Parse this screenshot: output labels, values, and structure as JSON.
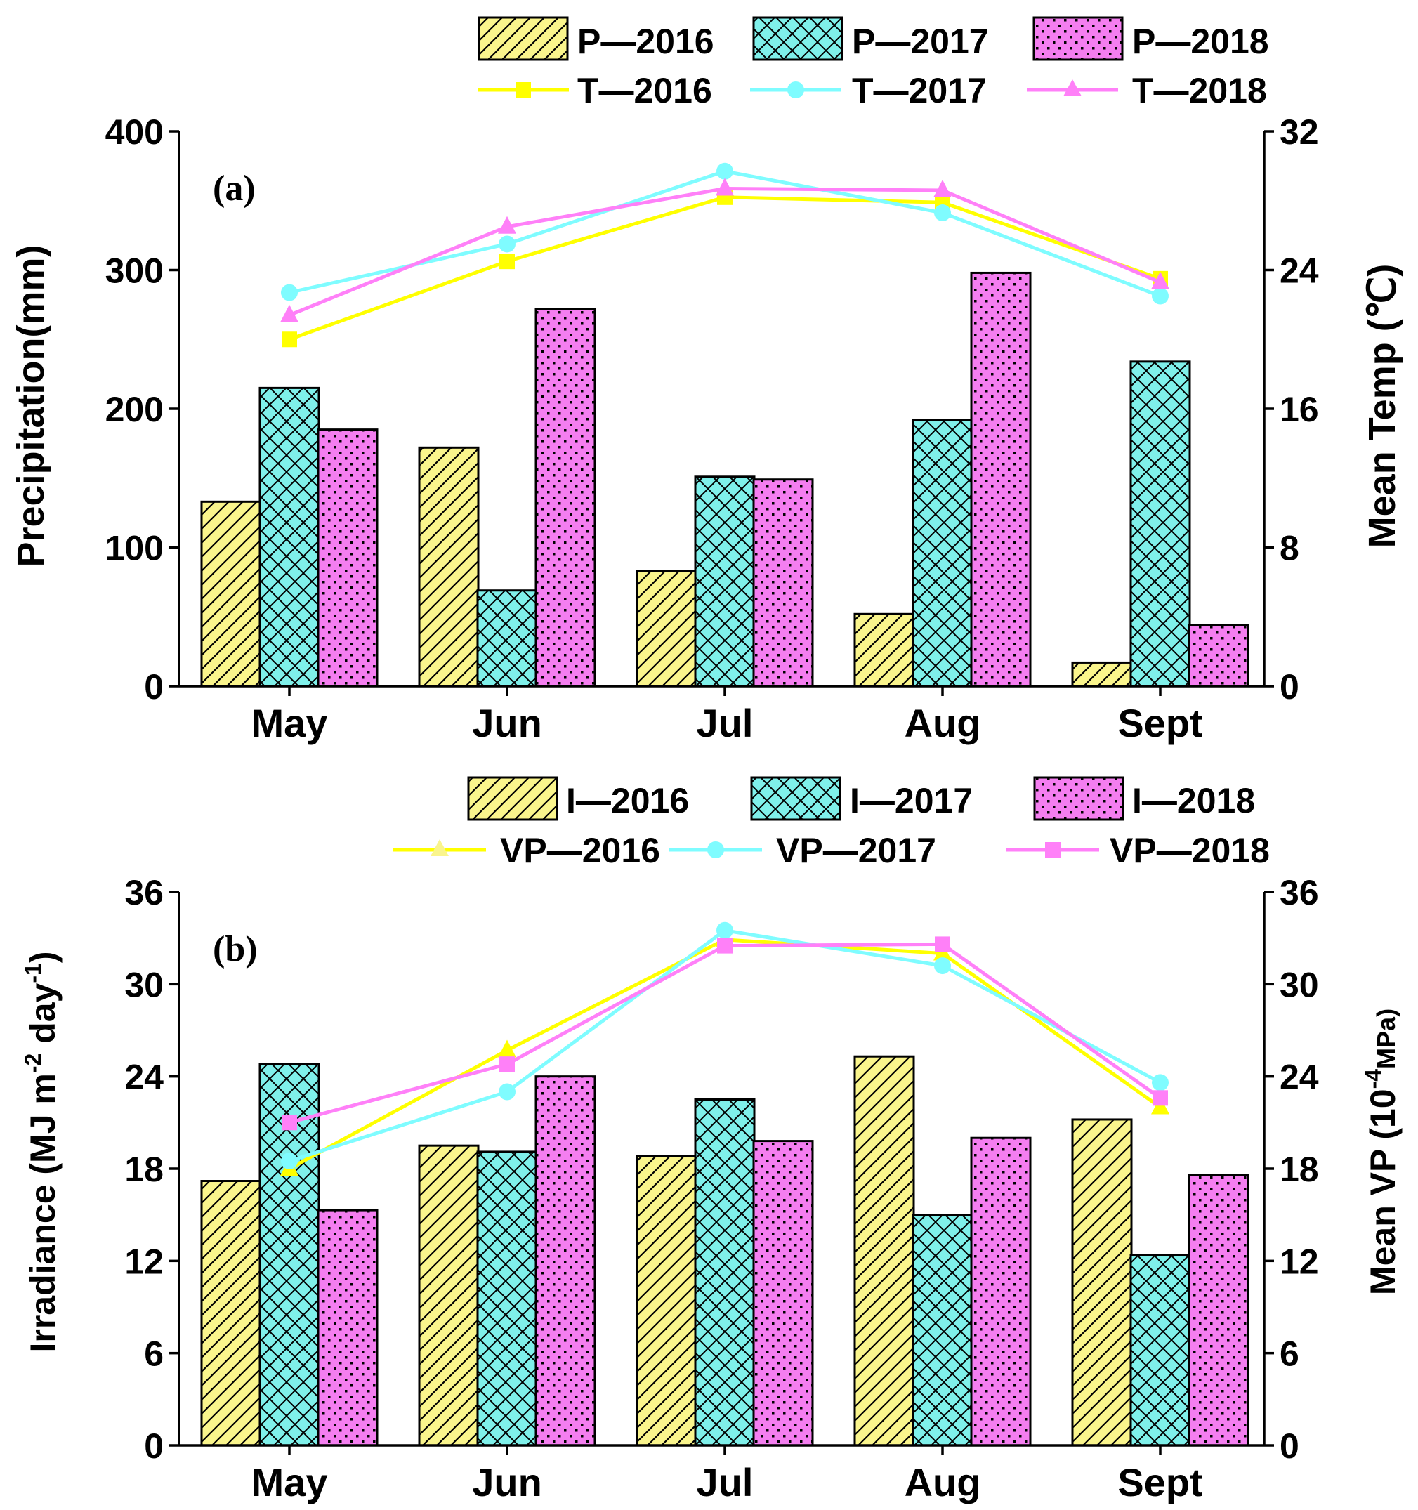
{
  "colors": {
    "y2016_fill": "#faf58c",
    "y2017_fill": "#7ff0ea",
    "y2018_fill": "#f47ef0",
    "y2016_line": "#ffff00",
    "y2017_line": "#7ffcff",
    "y2018_line": "#ff80f8",
    "axis": "#000000"
  },
  "chart_data": [
    {
      "type": "bar",
      "panel_label": "(a)",
      "categories": [
        "May",
        "Jun",
        "Jul",
        "Aug",
        "Sept"
      ],
      "ylabel": "Precipitation(mm)",
      "ylim": [
        0,
        400
      ],
      "yticks": [
        0,
        100,
        200,
        300,
        400
      ],
      "y2label": "Mean Temp (℃)",
      "y2lim": [
        0,
        32
      ],
      "y2ticks": [
        0,
        8,
        16,
        24,
        32
      ],
      "series": [
        {
          "name": "P—2016",
          "kind": "bar",
          "pattern": "hatch",
          "color_key": "y2016_fill",
          "values": [
            133,
            172,
            83,
            52,
            17
          ]
        },
        {
          "name": "P—2017",
          "kind": "bar",
          "pattern": "cross",
          "color_key": "y2017_fill",
          "values": [
            215,
            69,
            151,
            192,
            234
          ]
        },
        {
          "name": "P—2018",
          "kind": "bar",
          "pattern": "dots",
          "color_key": "y2018_fill",
          "values": [
            185,
            272,
            149,
            298,
            44
          ]
        }
      ],
      "lines": [
        {
          "name": "T—2016",
          "kind": "line",
          "marker": "square",
          "color_key": "y2016_line",
          "values": [
            20.0,
            24.5,
            28.2,
            27.9,
            23.5
          ]
        },
        {
          "name": "T—2017",
          "kind": "line",
          "marker": "circle",
          "color_key": "y2017_line",
          "values": [
            22.7,
            25.5,
            29.7,
            27.3,
            22.5
          ]
        },
        {
          "name": "T—2018",
          "kind": "line",
          "marker": "triangle",
          "color_key": "y2018_line",
          "values": [
            21.4,
            26.5,
            28.7,
            28.6,
            23.3
          ]
        }
      ]
    },
    {
      "type": "bar",
      "panel_label": "(b)",
      "categories": [
        "May",
        "Jun",
        "Jul",
        "Aug",
        "Sept"
      ],
      "ylabel": "Irradiance (MJ m",
      "ylabel_sup1": "-2",
      "ylabel_mid": " day",
      "ylabel_sup2": "-1",
      "ylabel_end": ")",
      "ylim": [
        0,
        36
      ],
      "yticks": [
        0,
        6,
        12,
        18,
        24,
        30,
        36
      ],
      "y2label": "Mean VP (10",
      "y2label_sup": "-4",
      "y2label_end": "MPa)",
      "y2lim": [
        0,
        36
      ],
      "y2ticks": [
        0,
        6,
        12,
        18,
        24,
        30,
        36
      ],
      "series": [
        {
          "name": "I—2016",
          "kind": "bar",
          "pattern": "hatch",
          "color_key": "y2016_fill",
          "values": [
            17.2,
            19.5,
            18.8,
            25.3,
            21.2
          ]
        },
        {
          "name": "I—2017",
          "kind": "bar",
          "pattern": "cross",
          "color_key": "y2017_fill",
          "values": [
            24.8,
            19.1,
            22.5,
            15.0,
            12.4
          ]
        },
        {
          "name": "I—2018",
          "kind": "bar",
          "pattern": "dots",
          "color_key": "y2018_fill",
          "values": [
            15.3,
            24.0,
            19.8,
            20.0,
            17.6
          ]
        }
      ],
      "lines": [
        {
          "name": "VP—2016",
          "kind": "line",
          "marker": "triangle",
          "color_key": "y2016_line",
          "values": [
            18.0,
            25.7,
            32.9,
            32.0,
            22.0
          ]
        },
        {
          "name": "VP—2017",
          "kind": "line",
          "marker": "circle",
          "color_key": "y2017_line",
          "values": [
            18.5,
            23.0,
            33.5,
            31.2,
            23.6
          ]
        },
        {
          "name": "VP—2018",
          "kind": "line",
          "marker": "square",
          "color_key": "y2018_line",
          "values": [
            21.0,
            24.8,
            32.5,
            32.6,
            22.6
          ]
        }
      ]
    }
  ]
}
